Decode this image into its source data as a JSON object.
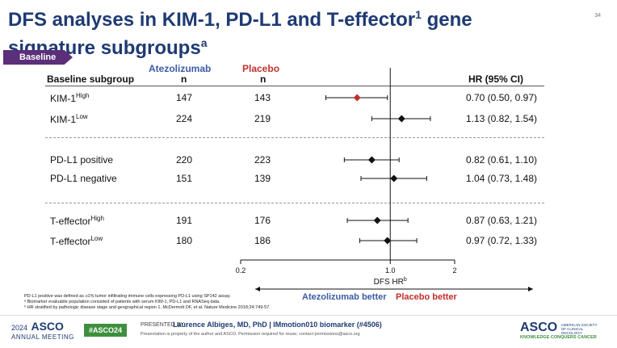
{
  "slide": {
    "title_line1": "DFS analyses in KIM-1, PD-L1 and T-effector",
    "title_sup1": "1",
    "title_line1_end": " gene",
    "title_line2": "signature subgroups",
    "title_sup2": "a",
    "page_number": "34",
    "badge": "Baseline"
  },
  "table": {
    "col_subgroup": "Baseline subgroup",
    "col_atezo": "Atezolizumab",
    "col_atezo_n": "n",
    "col_placebo": "Placebo",
    "col_placebo_n": "n",
    "col_hr": "HR (95% CI)",
    "rows": [
      {
        "label": "KIM-1",
        "sup": "High",
        "atezo_n": "147",
        "placebo_n": "143",
        "hr_text": "0.70 (0.50, 0.97)"
      },
      {
        "label": "KIM-1",
        "sup": "Low",
        "atezo_n": "224",
        "placebo_n": "219",
        "hr_text": "1.13 (0.82, 1.54)"
      },
      {
        "label": "PD-L1 positive",
        "sup": "",
        "atezo_n": "220",
        "placebo_n": "223",
        "hr_text": "0.82 (0.61, 1.10)"
      },
      {
        "label": "PD-L1 negative",
        "sup": "",
        "atezo_n": "151",
        "placebo_n": "139",
        "hr_text": "1.04 (0.73, 1.48)"
      },
      {
        "label": "T-effector",
        "sup": "High",
        "atezo_n": "191",
        "placebo_n": "176",
        "hr_text": "0.87 (0.63, 1.21)"
      },
      {
        "label": "T-effector",
        "sup": "Low",
        "atezo_n": "180",
        "placebo_n": "186",
        "hr_text": "0.97 (0.72, 1.33)"
      }
    ]
  },
  "chart_data": {
    "type": "scatter",
    "xlabel": "DFS HR",
    "xlabel_sup": "b",
    "x_scale": "log",
    "xlim": [
      0.2,
      2
    ],
    "x_ticks": [
      "0.2",
      "1.0",
      "2"
    ],
    "reference_line": 1.0,
    "series": [
      {
        "points": [
          {
            "hr": 0.7,
            "lo": 0.5,
            "hi": 0.97,
            "color": "#c0302b"
          },
          {
            "hr": 1.13,
            "lo": 0.82,
            "hi": 1.54,
            "color": "#111111"
          },
          {
            "hr": 0.82,
            "lo": 0.61,
            "hi": 1.1,
            "color": "#111111"
          },
          {
            "hr": 1.04,
            "lo": 0.73,
            "hi": 1.48,
            "color": "#111111"
          },
          {
            "hr": 0.87,
            "lo": 0.63,
            "hi": 1.21,
            "color": "#111111"
          },
          {
            "hr": 0.97,
            "lo": 0.72,
            "hi": 1.33,
            "color": "#111111"
          }
        ]
      }
    ],
    "favours_left": "Atezolizumab better",
    "favours_right": "Placebo better"
  },
  "footnotes": [
    "PD-L1 positive was defined as ≥1% tumor infiltrating immune cells expressing PD-L1 using SP142 assay.",
    "ᵃ Biomarker evaluable population consisted of patients with serum KIM-1, PD-L1 and RNASeq data.",
    "ᵇ HR stratified by pathologic disease stage and geographical region 1. McDermott DF, et al. Nature Medicine 2018;24:749-57."
  ],
  "footer": {
    "asco_year": "2024",
    "asco_name": "ASCO",
    "asco_meeting": "ANNUAL MEETING",
    "hashtag": "#ASCO24",
    "presented_by": "PRESENTED BY:",
    "presenter": "Laurence Albiges, MD, PhD  |  IMmotion010 biomarker (#4506)",
    "disclaimer": "Presentation is property of the author and ASCO. Permission required for reuse; contact permissions@asco.org",
    "right_logo": "ASCO",
    "right_logo_sub": "AMERICAN SOCIETY OF CLINICAL ONCOLOGY",
    "right_tagline": "KNOWLEDGE CONQUERS CANCER"
  },
  "colors": {
    "title": "#1f3a73",
    "badge": "#5b2f7a",
    "atezo": "#3b5ba5",
    "placebo": "#c0302b",
    "hashtag_bg": "#3e8f3e"
  }
}
